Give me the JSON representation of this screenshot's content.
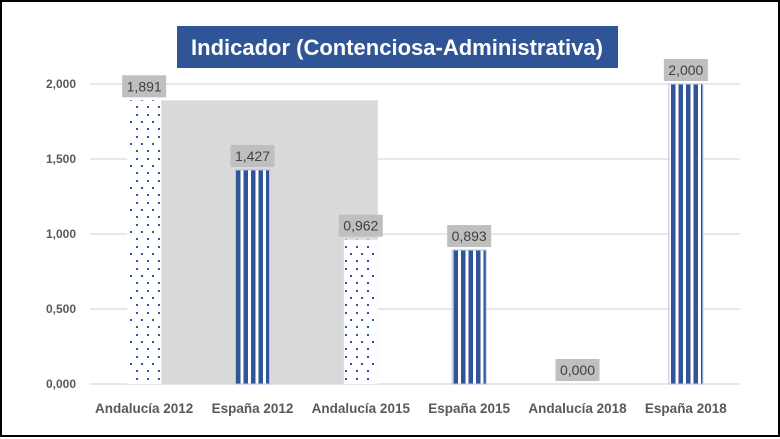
{
  "chart_data": {
    "type": "bar",
    "title": "Indicador (Contenciosa-Administrativa)",
    "xlabel": "",
    "ylabel": "",
    "categories": [
      "Andalucía 2012",
      "España 2012",
      "Andalucía 2015",
      "España  2015",
      "Andalucía 2018",
      "España 2018"
    ],
    "values": [
      1.891,
      1.427,
      0.962,
      0.893,
      0.0,
      2.0
    ],
    "value_labels": [
      "1,891",
      "1,427",
      "0,962",
      "0,893",
      "0,000",
      "2,000"
    ],
    "bar_patterns": [
      "dots",
      "stripes",
      "dots",
      "stripes",
      "dots",
      "stripes"
    ],
    "ylim": [
      0,
      2.0
    ],
    "yticks": [
      0,
      0.5,
      1.0,
      1.5,
      2.0
    ],
    "ytick_labels": [
      "0,000",
      "0,500",
      "1,000",
      "1,500",
      "2,000"
    ],
    "grid": true,
    "legend": "none",
    "highlight_region": {
      "from_category": "Andalucía 2012",
      "to_category": "Andalucía 2015",
      "top_value": 1.891,
      "color": "#d9d9d9"
    },
    "colors": {
      "bar": "#2f5597",
      "title_bg": "#2f5597",
      "title_text": "#ffffff",
      "label_bg": "#bfbfbf",
      "grid": "#d9d9d9",
      "axis_text": "#595959"
    }
  }
}
